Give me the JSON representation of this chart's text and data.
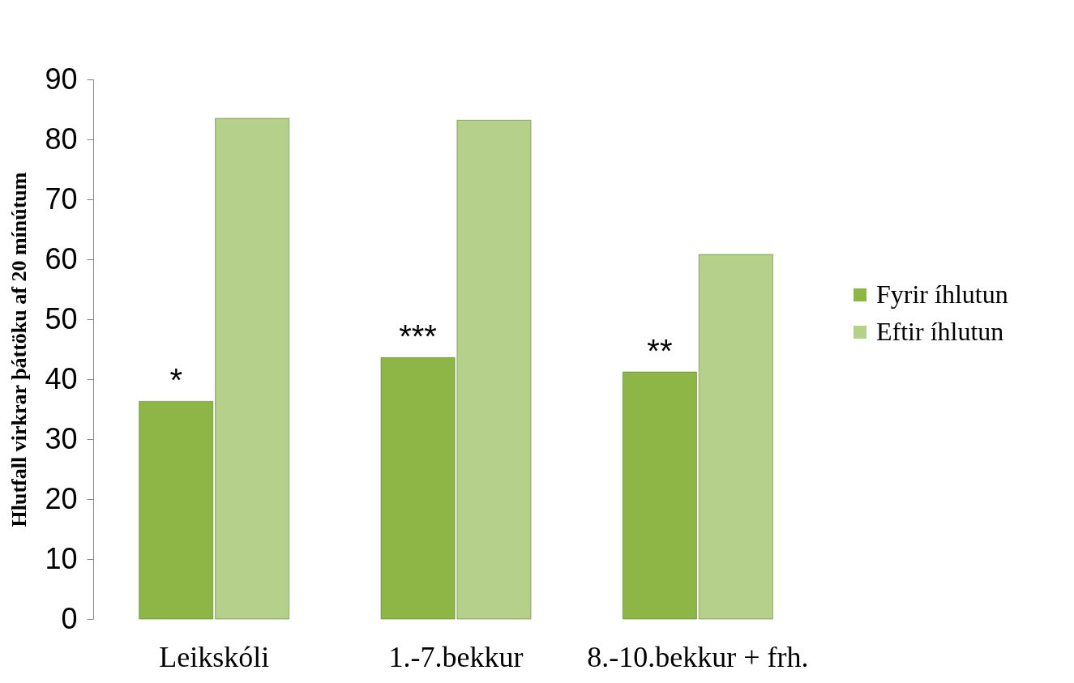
{
  "chart_data": {
    "type": "bar",
    "ylabel": "Hlutfall virkrar þáttöku af 20 mínútum",
    "categories": [
      "Leikskóli",
      "1.-7.bekkur",
      "8.-10.bekkur + frh."
    ],
    "series": [
      {
        "name": "Fyrir íhlutun",
        "color": "#8db646",
        "values": [
          36.3,
          43.6,
          41.2
        ]
      },
      {
        "name": "Eftir íhlutun",
        "color": "#b5d08a",
        "values": [
          83.5,
          83.2,
          60.8
        ]
      }
    ],
    "ylim": [
      0,
      90
    ],
    "yticks": [
      0,
      10,
      20,
      30,
      40,
      50,
      60,
      70,
      80,
      90
    ],
    "grid": false,
    "legend": "right",
    "annotations": [
      {
        "text": "*",
        "x": "Leikskóli",
        "y": 36.3
      },
      {
        "text": "***",
        "x": "1.-7.bekkur",
        "y": 43.6
      },
      {
        "text": "**",
        "x": "8.-10.bekkur + frh.",
        "y": 41.2
      }
    ]
  }
}
